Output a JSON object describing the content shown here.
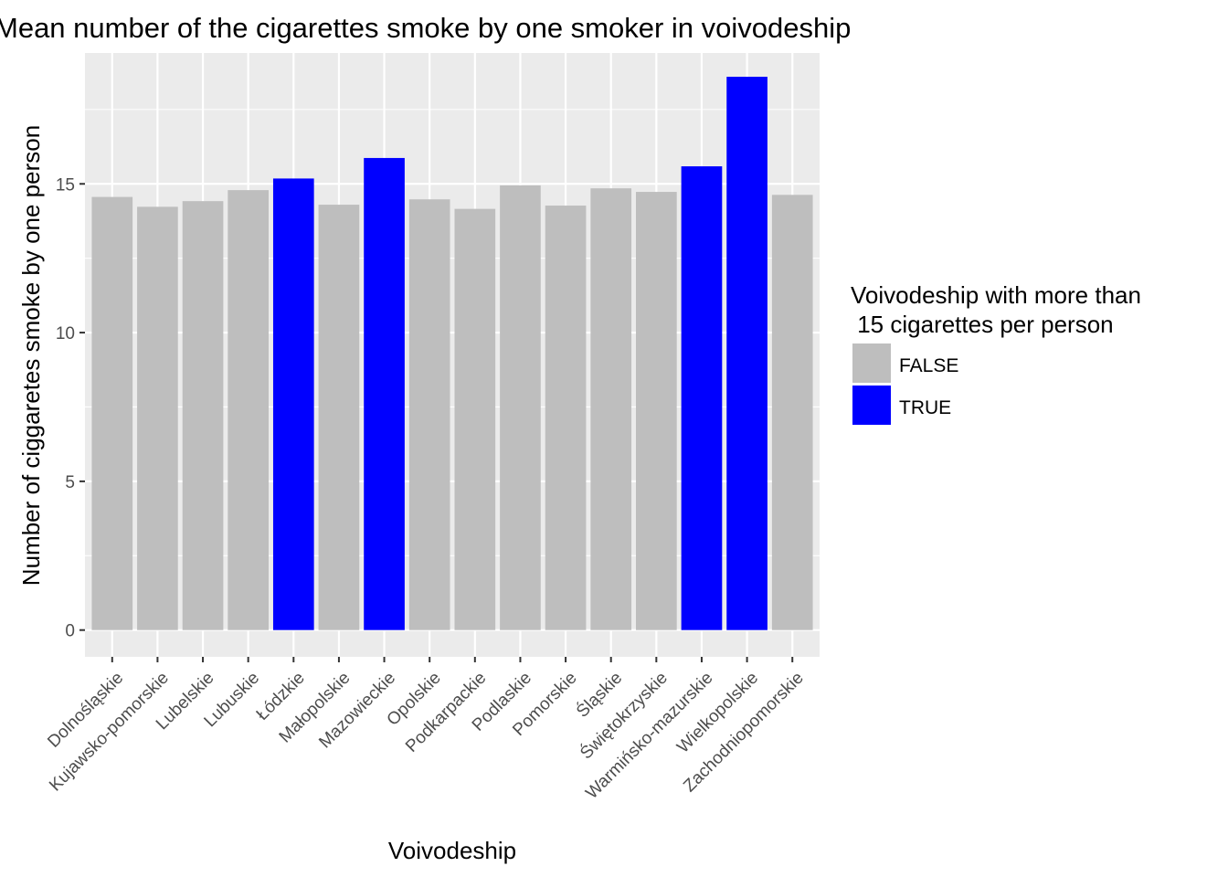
{
  "chart_data": {
    "type": "bar",
    "title": "Mean number of the cigarettes smoke by one smoker in voivodeship",
    "xlabel": "Voivodeship",
    "ylabel": "Number of ciggaretes smoke by one person",
    "ylim": [
      -0.9,
      19.4
    ],
    "yticks": [
      0,
      5,
      10,
      15
    ],
    "grid": true,
    "legend_position": "right",
    "categories": [
      "Dolnośląskie",
      "Kujawsko-pomorskie",
      "Lubelskie",
      "Lubuskie",
      "Łódzkie",
      "Małopolskie",
      "Mazowieckie",
      "Opolskie",
      "Podkarpackie",
      "Podlaskie",
      "Pomorskie",
      "Śląskie",
      "Świętokrzyskie",
      "Warmińsko-mazurskie",
      "Wielkopolskie",
      "Zachodniopomorskie"
    ],
    "values": [
      14.56,
      14.23,
      14.42,
      14.79,
      15.18,
      14.3,
      15.87,
      14.48,
      14.16,
      14.95,
      14.27,
      14.85,
      14.73,
      15.59,
      18.6,
      14.63
    ],
    "groups": [
      "FALSE",
      "FALSE",
      "FALSE",
      "FALSE",
      "TRUE",
      "FALSE",
      "TRUE",
      "FALSE",
      "FALSE",
      "FALSE",
      "FALSE",
      "FALSE",
      "FALSE",
      "TRUE",
      "TRUE",
      "FALSE"
    ],
    "legend": {
      "title_lines": [
        "Voivodeship with more than",
        " 15 cigarettes per person"
      ],
      "entries": [
        {
          "label": "FALSE",
          "color": "#bebebe"
        },
        {
          "label": "TRUE",
          "color": "#0000ff"
        }
      ]
    },
    "colors": {
      "panel": "#ebebeb",
      "grid": "#ffffff",
      "tick": "#4d4d4d"
    }
  }
}
